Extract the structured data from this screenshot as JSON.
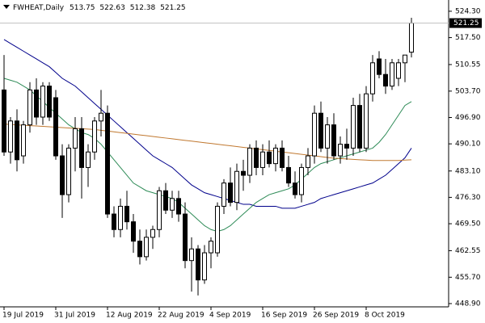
{
  "chart_data": {
    "type": "candlestick",
    "title": "FWHEAT,Daily",
    "categories": [
      "19 Jul 2019",
      null,
      null,
      null,
      null,
      null,
      null,
      null,
      "31 Jul 2019",
      null,
      null,
      null,
      null,
      null,
      null,
      null,
      "12 Aug 2019",
      null,
      null,
      null,
      null,
      null,
      null,
      null,
      "22 Aug 2019",
      null,
      null,
      null,
      null,
      null,
      null,
      null,
      "4 Sep 2019",
      null,
      null,
      null,
      null,
      null,
      null,
      null,
      "16 Sep 2019",
      null,
      null,
      null,
      null,
      null,
      null,
      null,
      "26 Sep 2019",
      null,
      null,
      null,
      null,
      null,
      null,
      null,
      "8 Oct 2019",
      null,
      null,
      null,
      null,
      null,
      null,
      null
    ],
    "open": [
      504,
      488,
      496,
      487,
      495,
      504,
      497,
      505,
      502,
      487,
      477,
      489,
      494,
      484,
      488,
      496,
      498,
      472,
      468,
      474,
      470,
      465,
      461,
      466,
      468,
      478,
      473,
      476,
      472,
      460,
      463,
      455,
      462,
      462,
      474,
      480,
      475,
      483,
      482,
      489,
      484,
      488,
      485,
      489,
      484,
      480,
      477,
      484,
      487,
      498,
      489,
      495,
      487,
      490,
      489,
      500,
      489,
      503,
      512,
      508,
      505,
      507,
      511,
      513.75
    ],
    "high": [
      513,
      497,
      499,
      496,
      506,
      507,
      506,
      506,
      504,
      490,
      490,
      497,
      497,
      490,
      497,
      504,
      500,
      474,
      476,
      478,
      472,
      468,
      468,
      469,
      479,
      480,
      478,
      478,
      475,
      466,
      464,
      464,
      466,
      475,
      481,
      484,
      485,
      486,
      490,
      491,
      490,
      491,
      490,
      491,
      487,
      483,
      485,
      489,
      500,
      501,
      497,
      498,
      492,
      494,
      502,
      503,
      505,
      513,
      514,
      512,
      512,
      512,
      513,
      522.63
    ],
    "low": [
      487,
      485,
      483,
      485,
      493,
      495,
      495,
      496,
      486,
      471,
      475,
      483,
      476,
      479,
      486,
      492,
      471,
      466,
      466,
      468,
      462,
      459,
      460,
      463,
      466,
      472,
      471,
      470,
      458,
      452,
      451,
      454,
      458,
      461,
      472,
      474,
      473,
      478,
      480,
      482,
      482,
      484,
      483,
      483,
      479,
      476,
      475,
      482,
      485,
      488,
      485,
      486,
      485,
      486,
      487,
      488,
      488,
      501,
      507,
      503,
      504,
      505,
      506,
      512.38
    ],
    "close": [
      488,
      496,
      486,
      495,
      504,
      497,
      505,
      497,
      487,
      477,
      489,
      494,
      484,
      488,
      496,
      498,
      472,
      468,
      474,
      470,
      465,
      461,
      466,
      468,
      478,
      473,
      476,
      472,
      460,
      463,
      455,
      462,
      465,
      474,
      480,
      475,
      483,
      482,
      489,
      484,
      488,
      485,
      489,
      484,
      480,
      477,
      484,
      487,
      498,
      489,
      495,
      487,
      490,
      489,
      500,
      489,
      503,
      511,
      508,
      505,
      511,
      511,
      513,
      521.25
    ],
    "lines": [
      {
        "color": "#00008b",
        "values": [
          517,
          516,
          515,
          514,
          513,
          512,
          511,
          510,
          508.5,
          507,
          506,
          505,
          503.5,
          502,
          500.5,
          499,
          497.5,
          496,
          494.5,
          493,
          491.5,
          490,
          488.5,
          487,
          486,
          485,
          484,
          482.5,
          481,
          479.5,
          478.5,
          477.5,
          477,
          476.5,
          476,
          475.5,
          475,
          474.5,
          474.5,
          474,
          474,
          474,
          474,
          473.5,
          473.5,
          473.5,
          474,
          474.5,
          475,
          476,
          476.5,
          477,
          477.5,
          478,
          478.5,
          479,
          479.5,
          480,
          481,
          482,
          483.5,
          485,
          486.5,
          489
        ]
      },
      {
        "color": "#2e8b57",
        "values": [
          507,
          506.5,
          506,
          505,
          504,
          502.5,
          501,
          499.5,
          498,
          496.5,
          495,
          494,
          493,
          492.5,
          491.5,
          490,
          488,
          486,
          484,
          482,
          480,
          479,
          478,
          477.5,
          477,
          476.5,
          476,
          475,
          473.5,
          472,
          470.5,
          469,
          468,
          467.5,
          468,
          469,
          470.5,
          472,
          473.5,
          475,
          476,
          477,
          477.5,
          478,
          478.5,
          479.5,
          481,
          482.5,
          484,
          485,
          485.5,
          486,
          486.5,
          487,
          487.5,
          488,
          488.5,
          489,
          490.5,
          492.5,
          495,
          497.5,
          500,
          501
        ]
      },
      {
        "color": "#c07830",
        "values": [
          495.2,
          495.1,
          495,
          494.9,
          494.8,
          494.7,
          494.6,
          494.5,
          494.4,
          494.3,
          494.2,
          494.1,
          494,
          493.9,
          493.8,
          493.6,
          493.4,
          493.2,
          493,
          492.8,
          492.6,
          492.4,
          492.2,
          492,
          491.8,
          491.6,
          491.4,
          491.2,
          491,
          490.8,
          490.6,
          490.4,
          490.2,
          490,
          489.8,
          489.6,
          489.4,
          489.2,
          489,
          488.8,
          488.6,
          488.4,
          488.2,
          488,
          487.8,
          487.6,
          487.4,
          487.2,
          487,
          486.8,
          486.6,
          486.4,
          486.3,
          486.2,
          486.1,
          486,
          485.9,
          485.8,
          485.8,
          485.8,
          485.8,
          485.8,
          485.9,
          486
        ]
      }
    ],
    "ylim": [
      448.06,
      527.2
    ],
    "yticks": [
      {
        "value": 524.3,
        "label": "524.30"
      },
      {
        "value": 517.5,
        "label": "517.50"
      },
      510.55,
      {
        "value": 503.7,
        "label": "503.70"
      },
      {
        "value": 496.9,
        "label": "496.90"
      },
      {
        "value": 490.1,
        "label": "490.10"
      },
      {
        "value": 483.1,
        "label": "483.10"
      },
      {
        "value": 476.3,
        "label": "476.30"
      },
      {
        "value": 469.5,
        "label": "469.50"
      },
      462.55,
      {
        "value": 455.7,
        "label": "455.70"
      },
      {
        "value": 448.9,
        "label": "448.90"
      }
    ],
    "up_color": "#ffffff",
    "down_color": "#000000"
  }
}
